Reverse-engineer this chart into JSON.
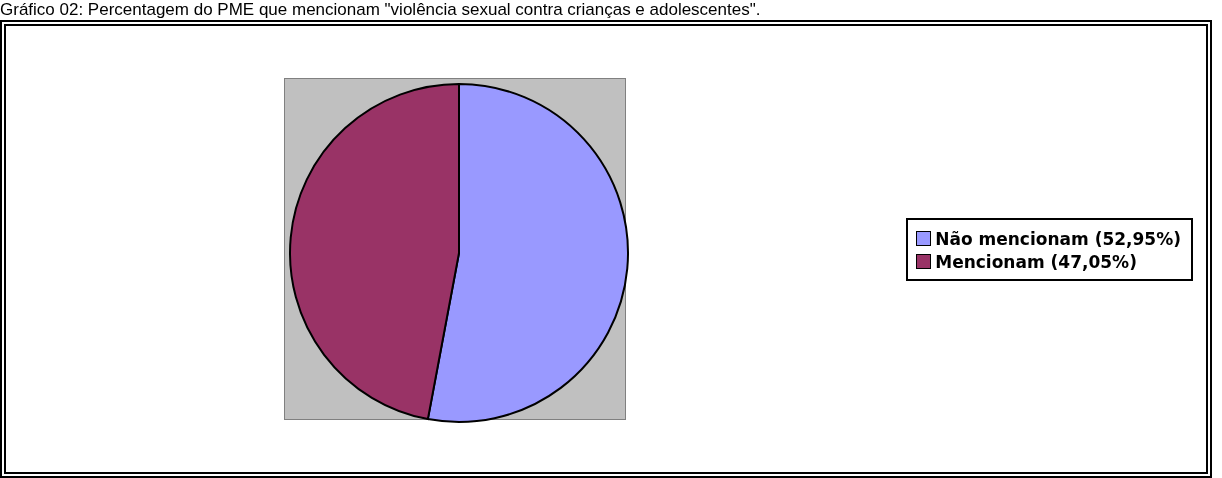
{
  "chart_data": {
    "type": "pie",
    "title": "Gráfico 02: Percentagem do PME que mencionam \"violência sexual contra crianças e adolescentes\".",
    "categories": [
      "Não mencionam (52,95%)",
      "Mencionam (47,05%)"
    ],
    "values": [
      52.95,
      47.05
    ],
    "colors": [
      "#9999ff",
      "#993366"
    ],
    "legend": "right"
  }
}
